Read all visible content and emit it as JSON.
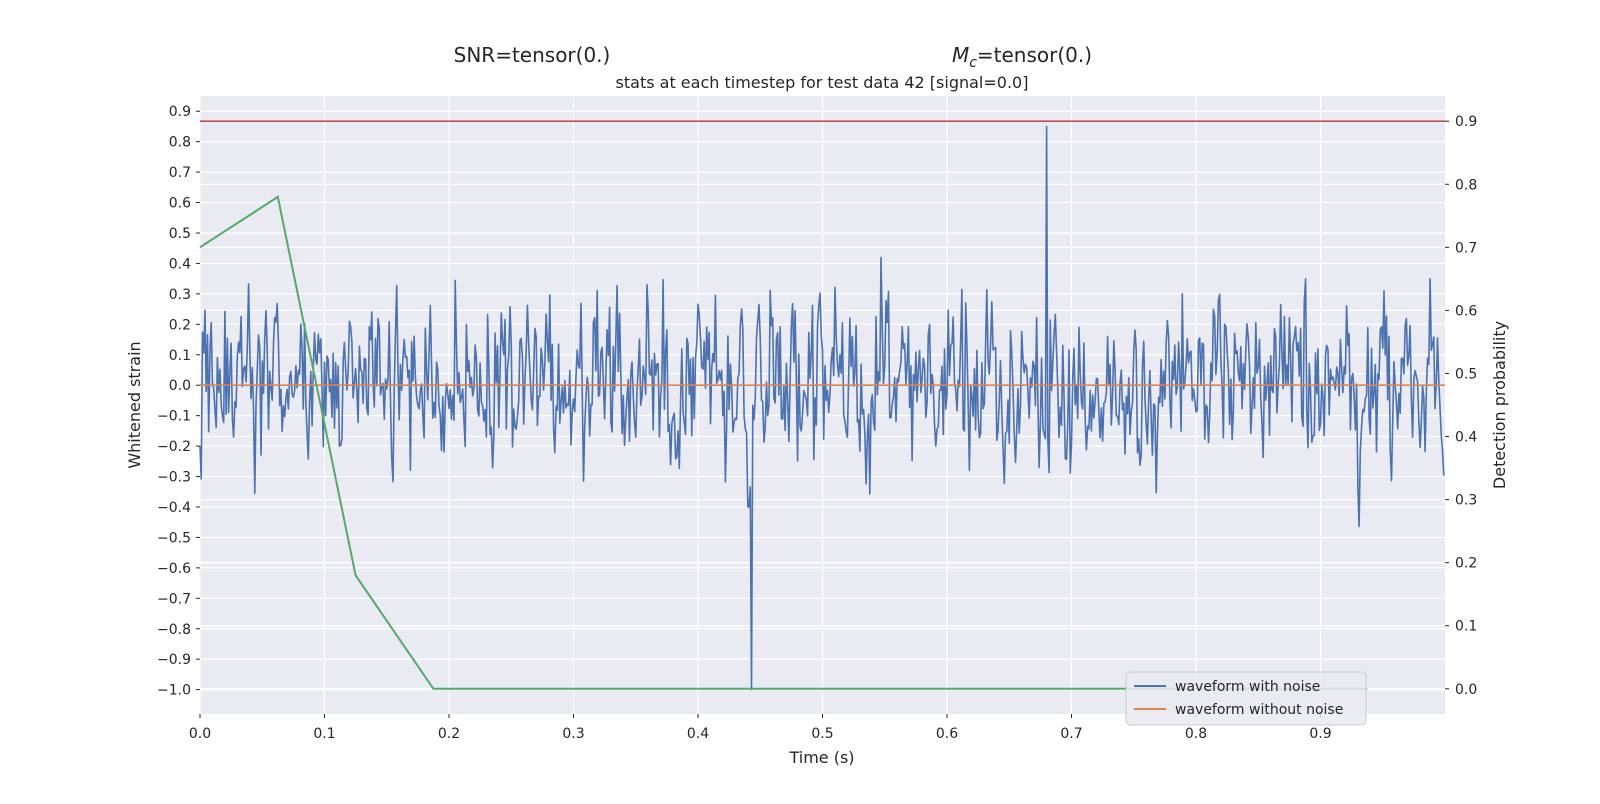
{
  "header": {
    "snr_text": "SNR=tensor(0.)",
    "mc_prefix": "M",
    "mc_sub": "c",
    "mc_suffix": "=tensor(0.)"
  },
  "chart_data": {
    "type": "line",
    "title": "stats at each timestep for test data 42 [signal=0.0]",
    "xlabel": "Time (s)",
    "ylabel": "Whitened strain",
    "y2label": "Detection probability",
    "xlim": [
      0.0,
      1.0
    ],
    "ylim": [
      -1.08,
      0.95
    ],
    "y2lim": [
      -0.04,
      0.94
    ],
    "x_ticks": [
      0.0,
      0.1,
      0.2,
      0.3,
      0.4,
      0.5,
      0.6,
      0.7,
      0.8,
      0.9
    ],
    "x_tick_labels": [
      "0.0",
      "0.1",
      "0.2",
      "0.3",
      "0.4",
      "0.5",
      "0.6",
      "0.7",
      "0.8",
      "0.9"
    ],
    "y_ticks": [
      0.9,
      0.8,
      0.7,
      0.6,
      0.5,
      0.4,
      0.3,
      0.2,
      0.1,
      0.0,
      -0.1,
      -0.2,
      -0.3,
      -0.4,
      -0.5,
      -0.6,
      -0.7,
      -0.8,
      -0.9,
      -1.0
    ],
    "y_tick_labels": [
      "0.9",
      "0.8",
      "0.7",
      "0.6",
      "0.5",
      "0.4",
      "0.3",
      "0.2",
      "0.1",
      "0.0",
      "−0.1",
      "−0.2",
      "−0.3",
      "−0.4",
      "−0.5",
      "−0.6",
      "−0.7",
      "−0.8",
      "−0.9",
      "−1.0"
    ],
    "y2_ticks": [
      0.9,
      0.8,
      0.7,
      0.6,
      0.5,
      0.4,
      0.3,
      0.2,
      0.1,
      0.0
    ],
    "y2_tick_labels": [
      "0.9",
      "0.8",
      "0.7",
      "0.6",
      "0.5",
      "0.4",
      "0.3",
      "0.2",
      "0.1",
      "0.0"
    ],
    "grid": true,
    "legend_position": "lower-right",
    "series": [
      {
        "name": "waveform with noise",
        "axis": "left",
        "color": "#4c72b0",
        "kind": "noise",
        "samples": 1000,
        "approx_range": [
          -1.0,
          0.85
        ],
        "peak_max": {
          "x": 0.68,
          "y": 0.85
        },
        "peak_min": {
          "x": 0.443,
          "y": -1.0
        }
      },
      {
        "name": "waveform without noise",
        "axis": "left",
        "color": "#dd8452",
        "x": [
          0.0,
          1.0
        ],
        "y": [
          0.0,
          0.0
        ]
      },
      {
        "axis": "right",
        "color": "#55a868",
        "x": [
          0.0,
          0.0625,
          0.125,
          0.1875,
          0.25,
          0.3125,
          0.375,
          0.4375,
          0.5,
          0.5625,
          0.625,
          0.6875,
          0.75,
          0.8125,
          0.875,
          0.9375
        ],
        "y": [
          0.7,
          0.78,
          0.18,
          0.0,
          0.0,
          0.0,
          0.0,
          0.0,
          0.0,
          0.0,
          0.0,
          0.0,
          0.0,
          0.0,
          0.0,
          0.0
        ]
      },
      {
        "axis": "right",
        "color": "#c44e52",
        "kind": "threshold",
        "y": 0.9
      }
    ],
    "colors": {
      "background": "#eaeaf2",
      "grid": "#ffffff",
      "text": "#262626"
    }
  }
}
